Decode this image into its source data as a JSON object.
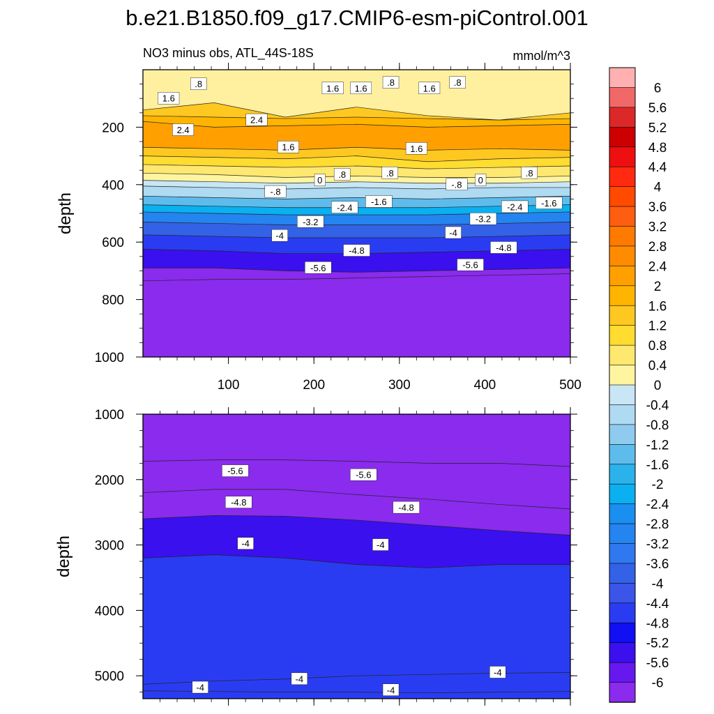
{
  "figure_title": "b.e21.B1850.f09_g17.CMIP6-esm-piControl.001",
  "chart_data": [
    {
      "type": "contour",
      "panel": "upper",
      "title_left": "NO3 minus obs, ATL_44S-18S",
      "title_right": "mmol/m^3",
      "xlabel": "",
      "ylabel": "depth",
      "xlim": [
        0,
        500
      ],
      "ylim": [
        1000,
        0
      ],
      "xticks": [
        "100",
        "200",
        "300",
        "400",
        "500"
      ],
      "yticks": [
        "200",
        "400",
        "600",
        "800",
        "1000"
      ],
      "contour_lines": [
        {
          "level": 1.6,
          "depth": [
            140,
            115,
            165,
            130,
            160,
            175,
            150
          ]
        },
        {
          "level": 2.0,
          "depth": [
            160,
            165,
            170,
            165,
            170,
            175,
            170
          ]
        },
        {
          "level": 2.4,
          "depth": [
            180,
            200,
            195,
            190,
            200,
            195,
            190
          ]
        },
        {
          "level": 2.0,
          "depth": [
            270,
            275,
            280,
            270,
            280,
            275,
            280
          ]
        },
        {
          "level": 1.6,
          "depth": [
            300,
            305,
            310,
            300,
            320,
            310,
            305
          ]
        },
        {
          "level": 1.2,
          "depth": [
            330,
            335,
            340,
            335,
            345,
            340,
            335
          ]
        },
        {
          "level": 0.8,
          "depth": [
            360,
            365,
            375,
            370,
            375,
            375,
            370
          ]
        },
        {
          "level": 0.4,
          "depth": [
            385,
            390,
            395,
            390,
            395,
            395,
            390
          ]
        },
        {
          "level": 0,
          "depth": [
            405,
            410,
            415,
            410,
            415,
            410,
            410
          ]
        },
        {
          "level": -0.8,
          "depth": [
            440,
            445,
            450,
            445,
            450,
            445,
            440
          ]
        },
        {
          "level": -1.6,
          "depth": [
            470,
            475,
            480,
            480,
            480,
            475,
            470
          ]
        },
        {
          "level": -2.4,
          "depth": [
            495,
            500,
            505,
            505,
            505,
            500,
            495
          ]
        },
        {
          "level": -3.2,
          "depth": [
            530,
            535,
            540,
            540,
            540,
            535,
            530
          ]
        },
        {
          "level": -4,
          "depth": [
            575,
            580,
            585,
            585,
            585,
            580,
            575
          ]
        },
        {
          "level": -4.8,
          "depth": [
            625,
            630,
            640,
            640,
            635,
            630,
            625
          ]
        },
        {
          "level": -5.6,
          "depth": [
            690,
            690,
            700,
            705,
            700,
            695,
            690
          ]
        },
        {
          "level": -6,
          "depth": [
            735,
            730,
            730,
            725,
            720,
            715,
            710
          ]
        }
      ],
      "contour_labels": [
        {
          "text": "1.6",
          "x": 30,
          "depth": 100
        },
        {
          "text": ".8",
          "x": 65,
          "depth": 50
        },
        {
          "text": "1.6",
          "x": 222,
          "depth": 65
        },
        {
          "text": "1.6",
          "x": 255,
          "depth": 65
        },
        {
          "text": ".8",
          "x": 290,
          "depth": 45
        },
        {
          "text": "1.6",
          "x": 335,
          "depth": 65
        },
        {
          "text": ".8",
          "x": 368,
          "depth": 45
        },
        {
          "text": "2.4",
          "x": 47,
          "depth": 210
        },
        {
          "text": "2.4",
          "x": 133,
          "depth": 175
        },
        {
          "text": "1.6",
          "x": 170,
          "depth": 270
        },
        {
          "text": "1.6",
          "x": 320,
          "depth": 275
        },
        {
          "text": "0",
          "x": 207,
          "depth": 385
        },
        {
          "text": ".8",
          "x": 233,
          "depth": 365
        },
        {
          "text": ".8",
          "x": 289,
          "depth": 360
        },
        {
          "text": "0",
          "x": 395,
          "depth": 385
        },
        {
          "text": ".8",
          "x": 452,
          "depth": 360
        },
        {
          "text": "-.8",
          "x": 155,
          "depth": 425
        },
        {
          "text": "-.8",
          "x": 367,
          "depth": 400
        },
        {
          "text": "-1.6",
          "x": 276,
          "depth": 460
        },
        {
          "text": "-1.6",
          "x": 475,
          "depth": 465
        },
        {
          "text": "-2.4",
          "x": 236,
          "depth": 480
        },
        {
          "text": "-2.4",
          "x": 435,
          "depth": 478
        },
        {
          "text": "-3.2",
          "x": 196,
          "depth": 530
        },
        {
          "text": "-3.2",
          "x": 398,
          "depth": 520
        },
        {
          "text": "-4",
          "x": 160,
          "depth": 578
        },
        {
          "text": "-4",
          "x": 363,
          "depth": 568
        },
        {
          "text": "-4.8",
          "x": 250,
          "depth": 630
        },
        {
          "text": "-4.8",
          "x": 422,
          "depth": 620
        },
        {
          "text": "-5.6",
          "x": 205,
          "depth": 690
        },
        {
          "text": "-5.6",
          "x": 383,
          "depth": 680
        }
      ]
    },
    {
      "type": "contour",
      "panel": "lower",
      "xlabel": "",
      "ylabel": "depth",
      "xlim": [
        0,
        500
      ],
      "ylim": [
        5350,
        1000
      ],
      "xticks": [
        "100",
        "200",
        "300",
        "400",
        "500"
      ],
      "yticks": [
        "1000",
        "2000",
        "3000",
        "4000",
        "5000"
      ],
      "contour_lines": [
        {
          "level": -6,
          "depth": [
            1720,
            1700,
            1700,
            1720,
            1750,
            1750,
            1800
          ]
        },
        {
          "level": -5.6,
          "depth": [
            2200,
            2150,
            2150,
            2230,
            2300,
            2380,
            2450
          ]
        },
        {
          "level": -4.8,
          "depth": [
            2600,
            2550,
            2560,
            2620,
            2700,
            2780,
            2850
          ]
        },
        {
          "level": -4,
          "depth": [
            3200,
            3150,
            3200,
            3300,
            3350,
            3300,
            3300
          ]
        },
        {
          "level": -4,
          "depth": [
            5130,
            5080,
            5050,
            5000,
            4980,
            4960,
            4950
          ]
        },
        {
          "level": -4,
          "depth": [
            5230,
            5240,
            5250,
            5250,
            5260,
            5250,
            5240
          ]
        }
      ],
      "contour_labels": [
        {
          "text": "-5.6",
          "x": 108,
          "depth": 1870
        },
        {
          "text": "-5.6",
          "x": 258,
          "depth": 1930
        },
        {
          "text": "-4.8",
          "x": 112,
          "depth": 2350
        },
        {
          "text": "-4.8",
          "x": 308,
          "depth": 2430
        },
        {
          "text": "-4",
          "x": 120,
          "depth": 2980
        },
        {
          "text": "-4",
          "x": 278,
          "depth": 3000
        },
        {
          "text": "-4",
          "x": 67,
          "depth": 5180
        },
        {
          "text": "-4",
          "x": 183,
          "depth": 5050
        },
        {
          "text": "-4",
          "x": 290,
          "depth": 5220
        },
        {
          "text": "-4",
          "x": 415,
          "depth": 4950
        }
      ]
    }
  ],
  "colorbar": {
    "labels": [
      "6",
      "5.6",
      "5.2",
      "4.8",
      "4.4",
      "4",
      "3.6",
      "3.2",
      "2.8",
      "2.4",
      "2",
      "1.6",
      "1.2",
      "0.8",
      "0.4",
      "0",
      "-0.4",
      "-0.8",
      "-1.2",
      "-1.6",
      "-2",
      "-2.4",
      "-2.8",
      "-3.2",
      "-3.6",
      "-4",
      "-4.4",
      "-4.8",
      "-5.2",
      "-5.6",
      "-6"
    ],
    "colors": [
      "#ffb0b0",
      "#f06868",
      "#dc2828",
      "#cc0000",
      "#ee1010",
      "#ff2a10",
      "#ff4a00",
      "#ff5e10",
      "#ff7a00",
      "#ff8c00",
      "#ffa000",
      "#ffb400",
      "#ffc820",
      "#ffdc30",
      "#ffe870",
      "#fff5a0",
      "#c8e6f5",
      "#aedaf2",
      "#8ecbee",
      "#5ebcec",
      "#2bb2ea",
      "#0ab0f0",
      "#1a8ff0",
      "#2484f0",
      "#2f78ef",
      "#3362e6",
      "#3a55e8",
      "#2a3cf2",
      "#1010f2",
      "#3a10ee",
      "#6618ee",
      "#8a2bee"
    ]
  }
}
